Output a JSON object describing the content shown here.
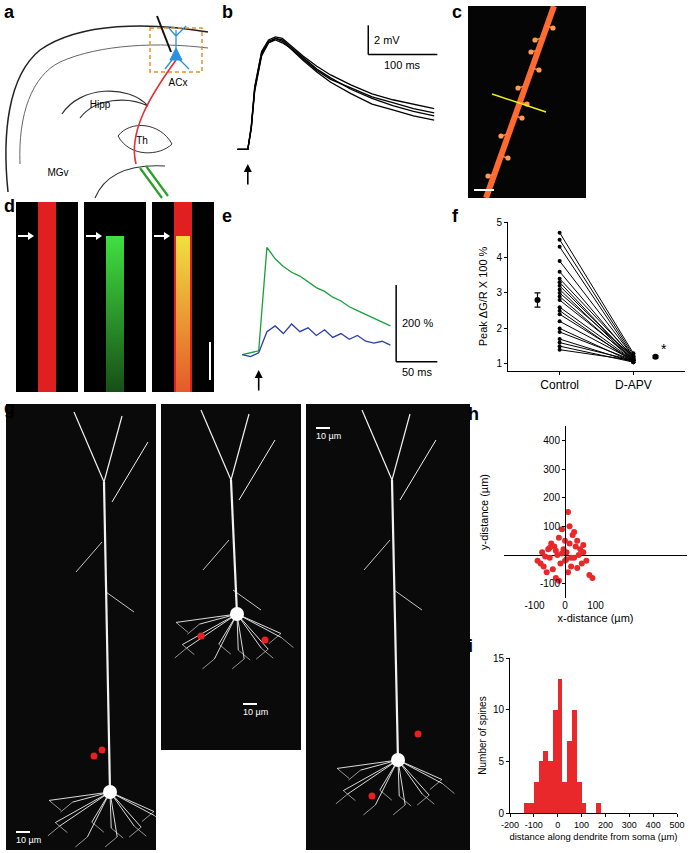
{
  "panel_labels": [
    "a",
    "b",
    "c",
    "d",
    "e",
    "f",
    "g",
    "h",
    "i"
  ],
  "diagram": {
    "labels": {
      "cortex": "ACx",
      "hippocampus": "Hipp",
      "thalamus": "Th",
      "mgv": "MGv"
    }
  },
  "images": {
    "g": {
      "scale_labels": [
        "10 µm",
        "10 µm",
        "10 µm"
      ]
    }
  },
  "chart_data": [
    {
      "type": "line",
      "x": [
        -15,
        0,
        5,
        10,
        20,
        30,
        40,
        50,
        60,
        80,
        100,
        120,
        150,
        180,
        210,
        240,
        270
      ],
      "series": [
        {
          "color": "#000000",
          "values": [
            0,
            0,
            1.5,
            4.2,
            6.6,
            7.4,
            7.6,
            7.5,
            7.1,
            6.3,
            5.5,
            4.9,
            4.1,
            3.5,
            3.0,
            2.6,
            2.3
          ]
        },
        {
          "color": "#000000",
          "values": [
            0,
            0,
            1.4,
            4.0,
            6.4,
            7.3,
            7.5,
            7.3,
            7.0,
            6.1,
            5.3,
            4.6,
            3.8,
            3.1,
            2.7,
            2.3,
            2.0
          ]
        },
        {
          "color": "#000000",
          "values": [
            0,
            0,
            1.6,
            4.3,
            6.7,
            7.5,
            7.7,
            7.6,
            7.2,
            6.4,
            5.7,
            5.1,
            4.4,
            3.8,
            3.4,
            3.1,
            2.8
          ]
        },
        {
          "color": "#000000",
          "values": [
            0,
            0,
            1.5,
            4.1,
            6.5,
            7.3,
            7.6,
            7.4,
            7.0,
            6.2,
            5.4,
            4.8,
            4.2,
            3.6,
            3.2,
            2.8,
            2.5
          ]
        }
      ],
      "xlim": [
        -20,
        290
      ],
      "ylim": [
        -1,
        9
      ],
      "tick_labels": false,
      "stimulus": 0,
      "scale_bars": [
        {
          "axis": "y",
          "value": 2,
          "label": "2 mV"
        },
        {
          "axis": "x",
          "value": 100,
          "label": "100 ms"
        }
      ]
    },
    {
      "type": "line",
      "x": [
        0,
        10,
        20,
        30,
        40,
        50,
        60,
        70,
        80,
        90,
        100,
        110,
        120,
        130,
        140,
        150,
        160,
        170,
        180
      ],
      "series": [
        {
          "color": "#1a9e3a",
          "values": [
            0,
            5,
            10,
            280,
            250,
            230,
            215,
            205,
            190,
            175,
            165,
            150,
            140,
            125,
            115,
            105,
            95,
            85,
            75
          ]
        },
        {
          "color": "#2a3fa8",
          "values": [
            0,
            -5,
            5,
            60,
            75,
            55,
            80,
            60,
            70,
            50,
            65,
            45,
            55,
            40,
            50,
            35,
            30,
            35,
            25
          ]
        }
      ],
      "xlim": [
        -10,
        250
      ],
      "ylim": [
        -40,
        320
      ],
      "tick_labels": false,
      "stimulus": 20,
      "scale_bars": [
        {
          "axis": "y",
          "value": 200,
          "label": "200 %"
        },
        {
          "axis": "x",
          "value": 50,
          "label": "50 ms"
        }
      ]
    },
    {
      "type": "scatter",
      "categories": [
        "Control",
        "D-APV"
      ],
      "pairs": [
        [
          4.7,
          1.3
        ],
        [
          4.5,
          1.25
        ],
        [
          4.3,
          1.2
        ],
        [
          3.9,
          1.2
        ],
        [
          3.6,
          1.15
        ],
        [
          3.4,
          1.2
        ],
        [
          3.3,
          1.1
        ],
        [
          3.2,
          1.15
        ],
        [
          3.1,
          1.1
        ],
        [
          3.0,
          1.2
        ],
        [
          2.9,
          1.1
        ],
        [
          2.8,
          1.15
        ],
        [
          2.6,
          1.1
        ],
        [
          2.5,
          1.05
        ],
        [
          2.4,
          1.1
        ],
        [
          2.2,
          1.1
        ],
        [
          2.0,
          1.05
        ],
        [
          1.9,
          1.1
        ],
        [
          1.7,
          1.05
        ],
        [
          1.6,
          1.1
        ],
        [
          1.5,
          1.05
        ],
        [
          1.4,
          1.1
        ]
      ],
      "mean": [
        2.8,
        1.2
      ],
      "error": [
        0.2,
        0.03
      ],
      "color": "#000000",
      "ylabel": "Peak ΔG/R X 100 %",
      "ylim": [
        0.8,
        5
      ],
      "yticks": [
        1,
        2,
        3,
        4,
        5
      ],
      "annotations": [
        {
          "category": "D-APV",
          "text": "*"
        }
      ]
    },
    {
      "type": "scatter",
      "x": [
        -90,
        -80,
        -75,
        -70,
        -60,
        -55,
        -50,
        -45,
        -40,
        -35,
        -30,
        -25,
        -20,
        -15,
        -10,
        -5,
        0,
        5,
        10,
        15,
        20,
        25,
        30,
        35,
        40,
        45,
        50,
        55,
        60,
        70,
        80,
        -65,
        -30,
        10,
        30,
        -10,
        20,
        -50,
        0,
        40,
        60,
        -20,
        90,
        15,
        5
      ],
      "values": [
        -20,
        -30,
        10,
        -40,
        -60,
        20,
        -10,
        40,
        -50,
        30,
        -80,
        0,
        60,
        -30,
        90,
        20,
        -20,
        10,
        150,
        40,
        -40,
        70,
        -10,
        30,
        50,
        0,
        20,
        -30,
        10,
        -20,
        -70,
        -5,
        15,
        -60,
        80,
        5,
        -10,
        25,
        50,
        -45,
        35,
        -90,
        -80,
        100,
        -15
      ],
      "color": "#e8282a",
      "xlabel": "x-distance (µm)",
      "ylabel": "y-distance (µm)",
      "xlim": [
        -200,
        400
      ],
      "ylim": [
        -150,
        450
      ],
      "xticks": [
        -100,
        0,
        100
      ],
      "yticks": [
        -100,
        100,
        200,
        300,
        400
      ]
    },
    {
      "type": "histogram",
      "bins": [
        -140,
        -120,
        -100,
        -80,
        -60,
        -40,
        -20,
        0,
        20,
        40,
        60,
        80,
        100,
        120,
        140,
        160,
        180
      ],
      "counts": [
        1,
        1,
        3,
        5,
        6,
        5,
        10,
        13,
        3,
        7,
        10,
        3,
        1,
        0,
        0,
        1
      ],
      "color": "#e8282a",
      "xlabel": "distance along dendrite from soma (µm)",
      "ylabel": "Number of spines",
      "xlim": [
        -200,
        500
      ],
      "xticks": [
        -200,
        -100,
        0,
        100,
        200,
        300,
        400,
        500
      ],
      "ylim": [
        0,
        15
      ],
      "yticks": [
        0,
        5,
        10,
        15
      ]
    }
  ]
}
